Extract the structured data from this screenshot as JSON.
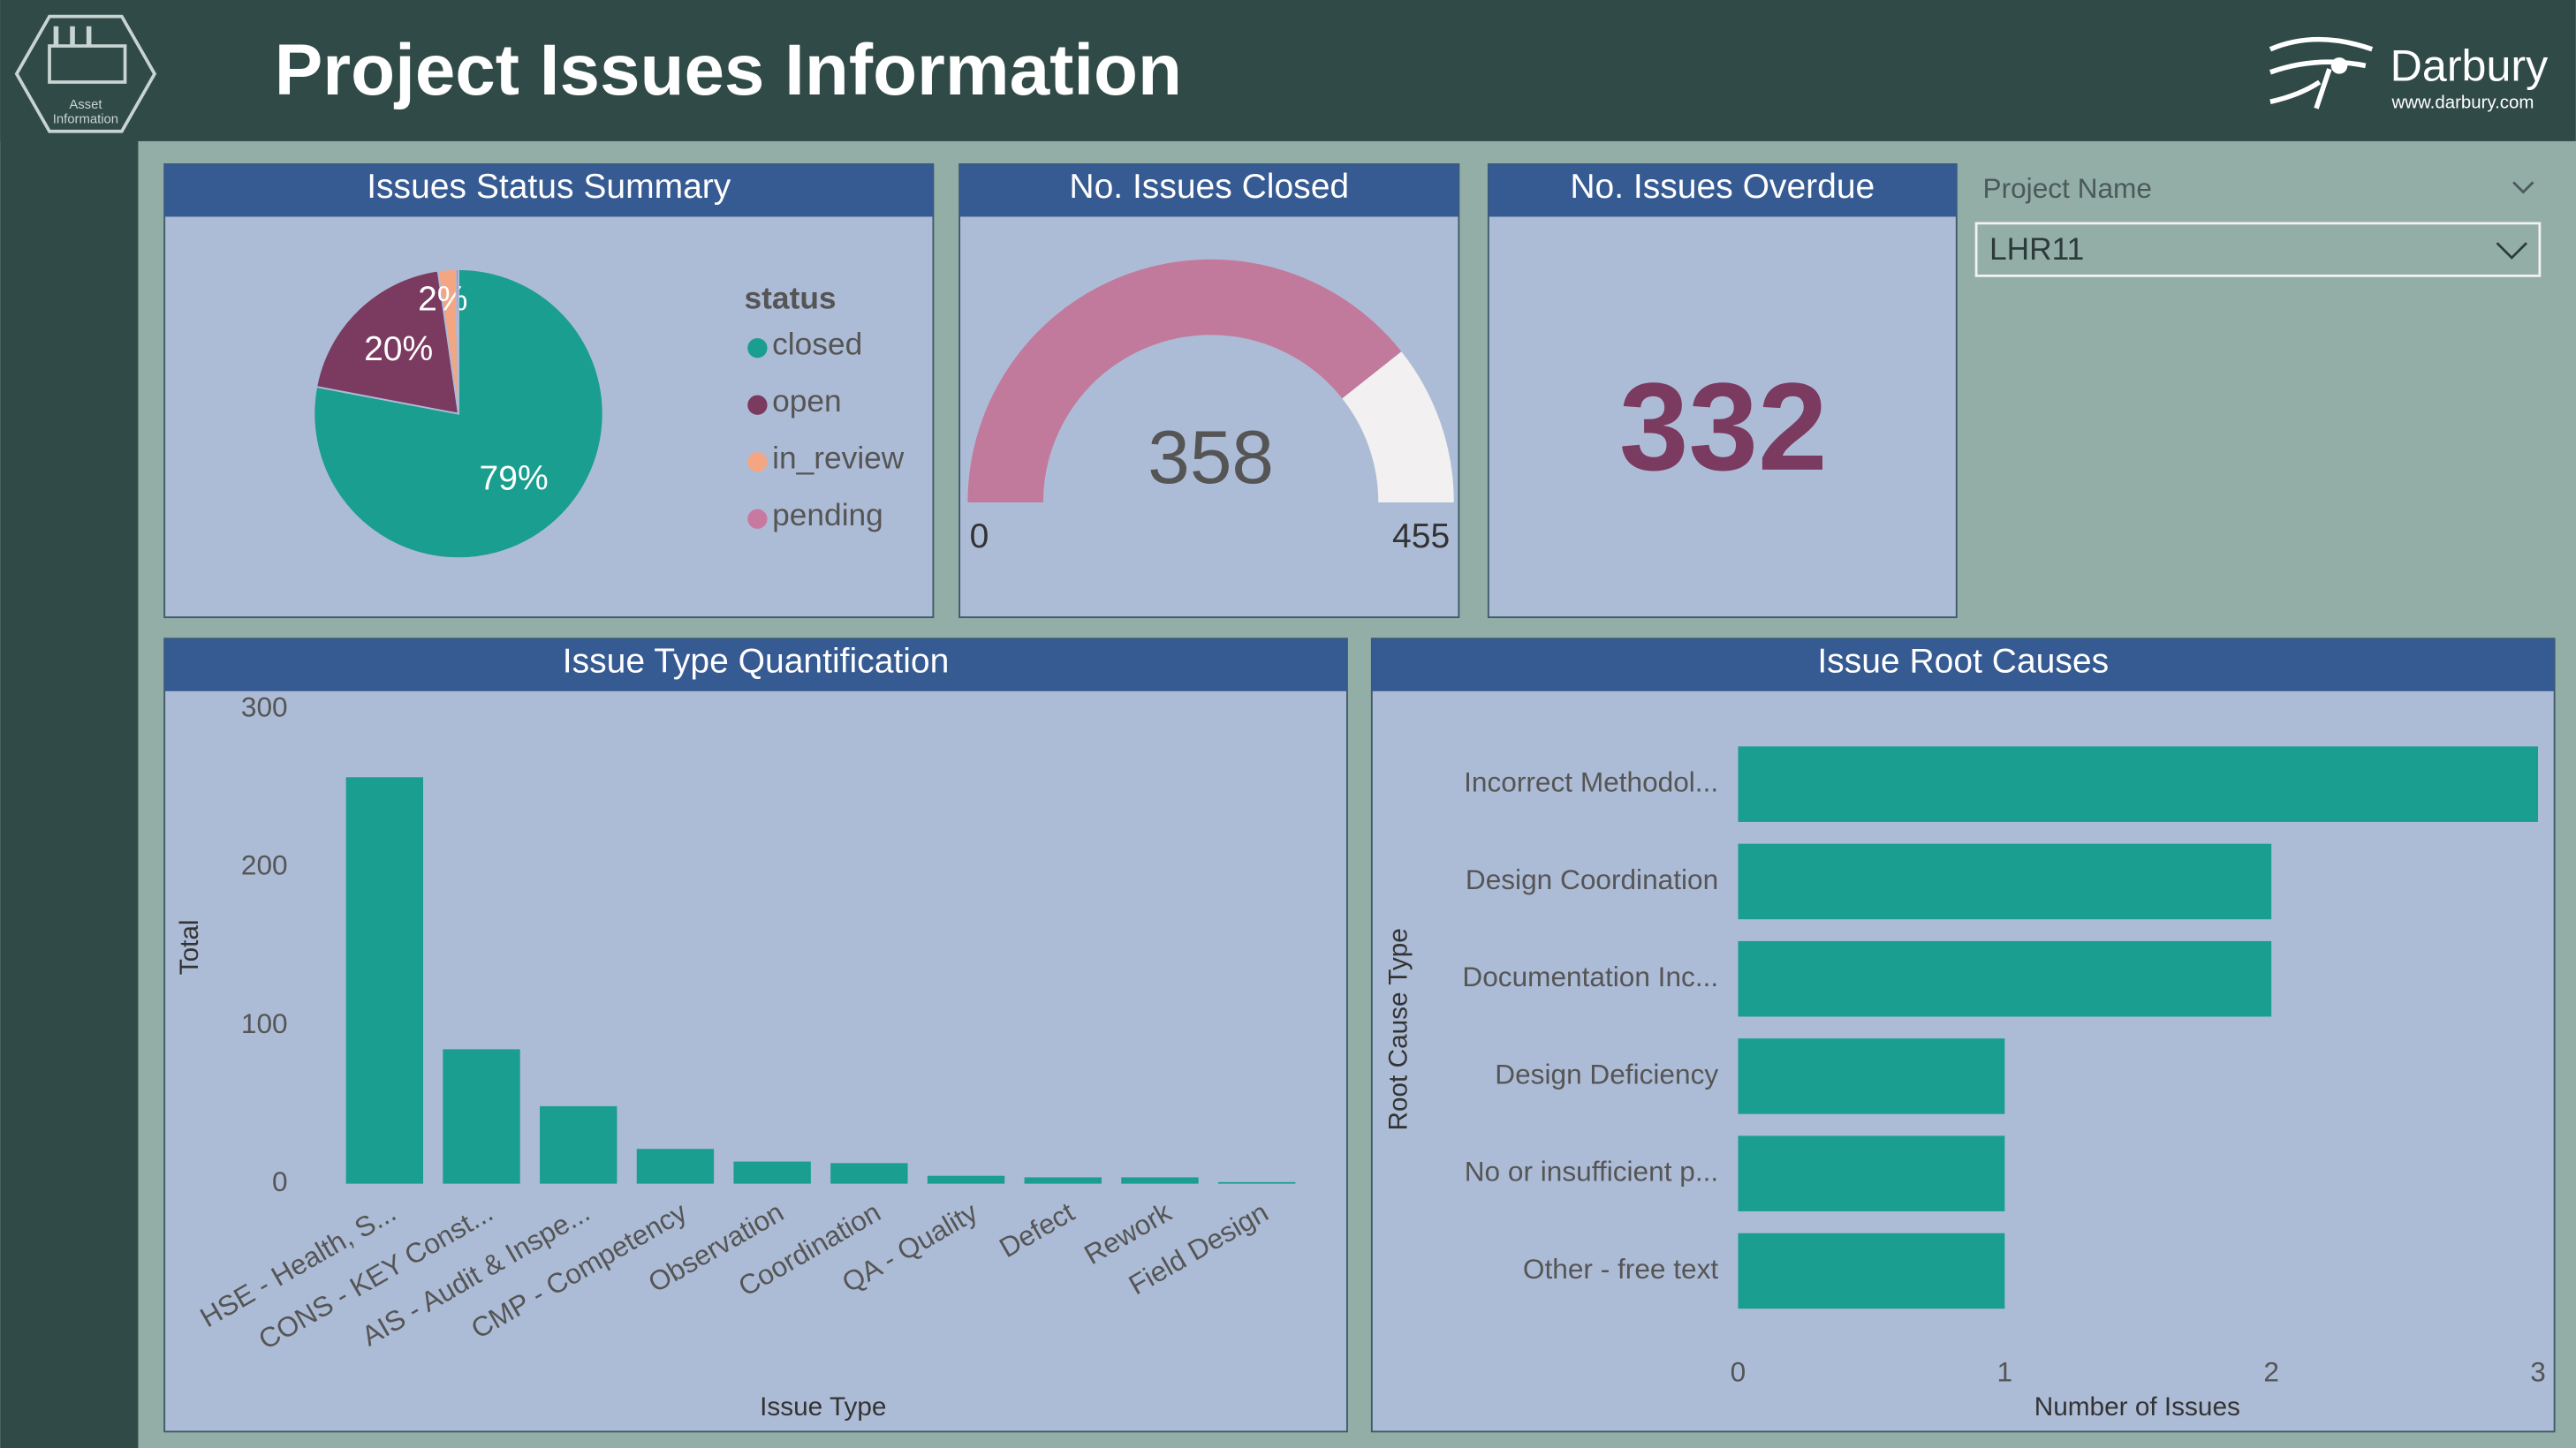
{
  "header": {
    "title": "Project Issues Information",
    "logo_text": [
      "Asset",
      "Information"
    ],
    "brand": "Darbury",
    "url": "www.darbury.com"
  },
  "slicer": {
    "label": "Project Name",
    "value": "LHR11"
  },
  "chart_data": [
    {
      "type": "pie",
      "title": "Issues Status Summary",
      "legend_title": "status",
      "categories": [
        "closed",
        "open",
        "in_review",
        "pending"
      ],
      "values": [
        79,
        20,
        2,
        0.3
      ],
      "value_labels": [
        "79%",
        "20%",
        "2%",
        null
      ],
      "colors": [
        "#1a9e8f",
        "#7b3a5f",
        "#f4a582",
        "#c7799f"
      ]
    },
    {
      "type": "gauge",
      "title": "No. Issues Closed",
      "value": 358,
      "ylim": [
        0,
        455
      ],
      "color": "#c27a9c",
      "track_color": "#f2f0f0"
    },
    {
      "type": "card",
      "title": "No. Issues Overdue",
      "value": 332,
      "color": "#7b3a5f"
    },
    {
      "type": "bar",
      "title": "Issue Type Quantification",
      "xlabel": "Issue Type",
      "ylabel": "Total",
      "categories": [
        "HSE - Health, S...",
        "CONS - KEY Const...",
        "AIS - Audit & Inspe...",
        "CMP - Competency",
        "Observation",
        "Coordination",
        "QA - Quality",
        "Defect",
        "Rework",
        "Field Design"
      ],
      "values": [
        257,
        85,
        49,
        22,
        14,
        13,
        5,
        4,
        4,
        1
      ],
      "ylim": [
        0,
        300
      ],
      "yticks": [
        0,
        100,
        200,
        300
      ],
      "color": "#1a9e8f"
    },
    {
      "type": "hbar",
      "title": "Issue Root Causes",
      "xlabel": "Number of Issues",
      "ylabel": "Root Cause Type",
      "categories": [
        "Incorrect Methodol...",
        "Design Coordination",
        "Documentation Inc...",
        "Design Deficiency",
        "No or insufficient p...",
        "Other - free text"
      ],
      "values": [
        3,
        2,
        2,
        1,
        1,
        1
      ],
      "xlim": [
        0,
        3
      ],
      "xticks": [
        0,
        1,
        2,
        3
      ],
      "color": "#1a9e8f"
    }
  ]
}
